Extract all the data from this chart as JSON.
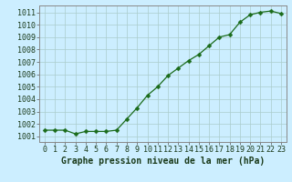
{
  "x": [
    0,
    1,
    2,
    3,
    4,
    5,
    6,
    7,
    8,
    9,
    10,
    11,
    12,
    13,
    14,
    15,
    16,
    17,
    18,
    19,
    20,
    21,
    22,
    23
  ],
  "y": [
    1001.5,
    1001.5,
    1001.5,
    1001.2,
    1001.4,
    1001.4,
    1001.4,
    1001.5,
    1002.4,
    1003.3,
    1004.3,
    1005.0,
    1005.9,
    1006.5,
    1007.1,
    1007.6,
    1008.3,
    1009.0,
    1009.2,
    1010.2,
    1010.8,
    1011.0,
    1011.1,
    1010.9
  ],
  "line_color": "#1a6b1a",
  "marker": "D",
  "marker_size": 2.5,
  "bg_color": "#cceeff",
  "grid_color": "#aacccc",
  "xlabel": "Graphe pression niveau de la mer (hPa)",
  "xlabel_fontsize": 7,
  "ylabel_ticks": [
    1001,
    1002,
    1003,
    1004,
    1005,
    1006,
    1007,
    1008,
    1009,
    1010,
    1011
  ],
  "ylim": [
    1000.55,
    1011.55
  ],
  "xlim": [
    -0.5,
    23.5
  ],
  "tick_fontsize": 6,
  "line_width": 0.9
}
